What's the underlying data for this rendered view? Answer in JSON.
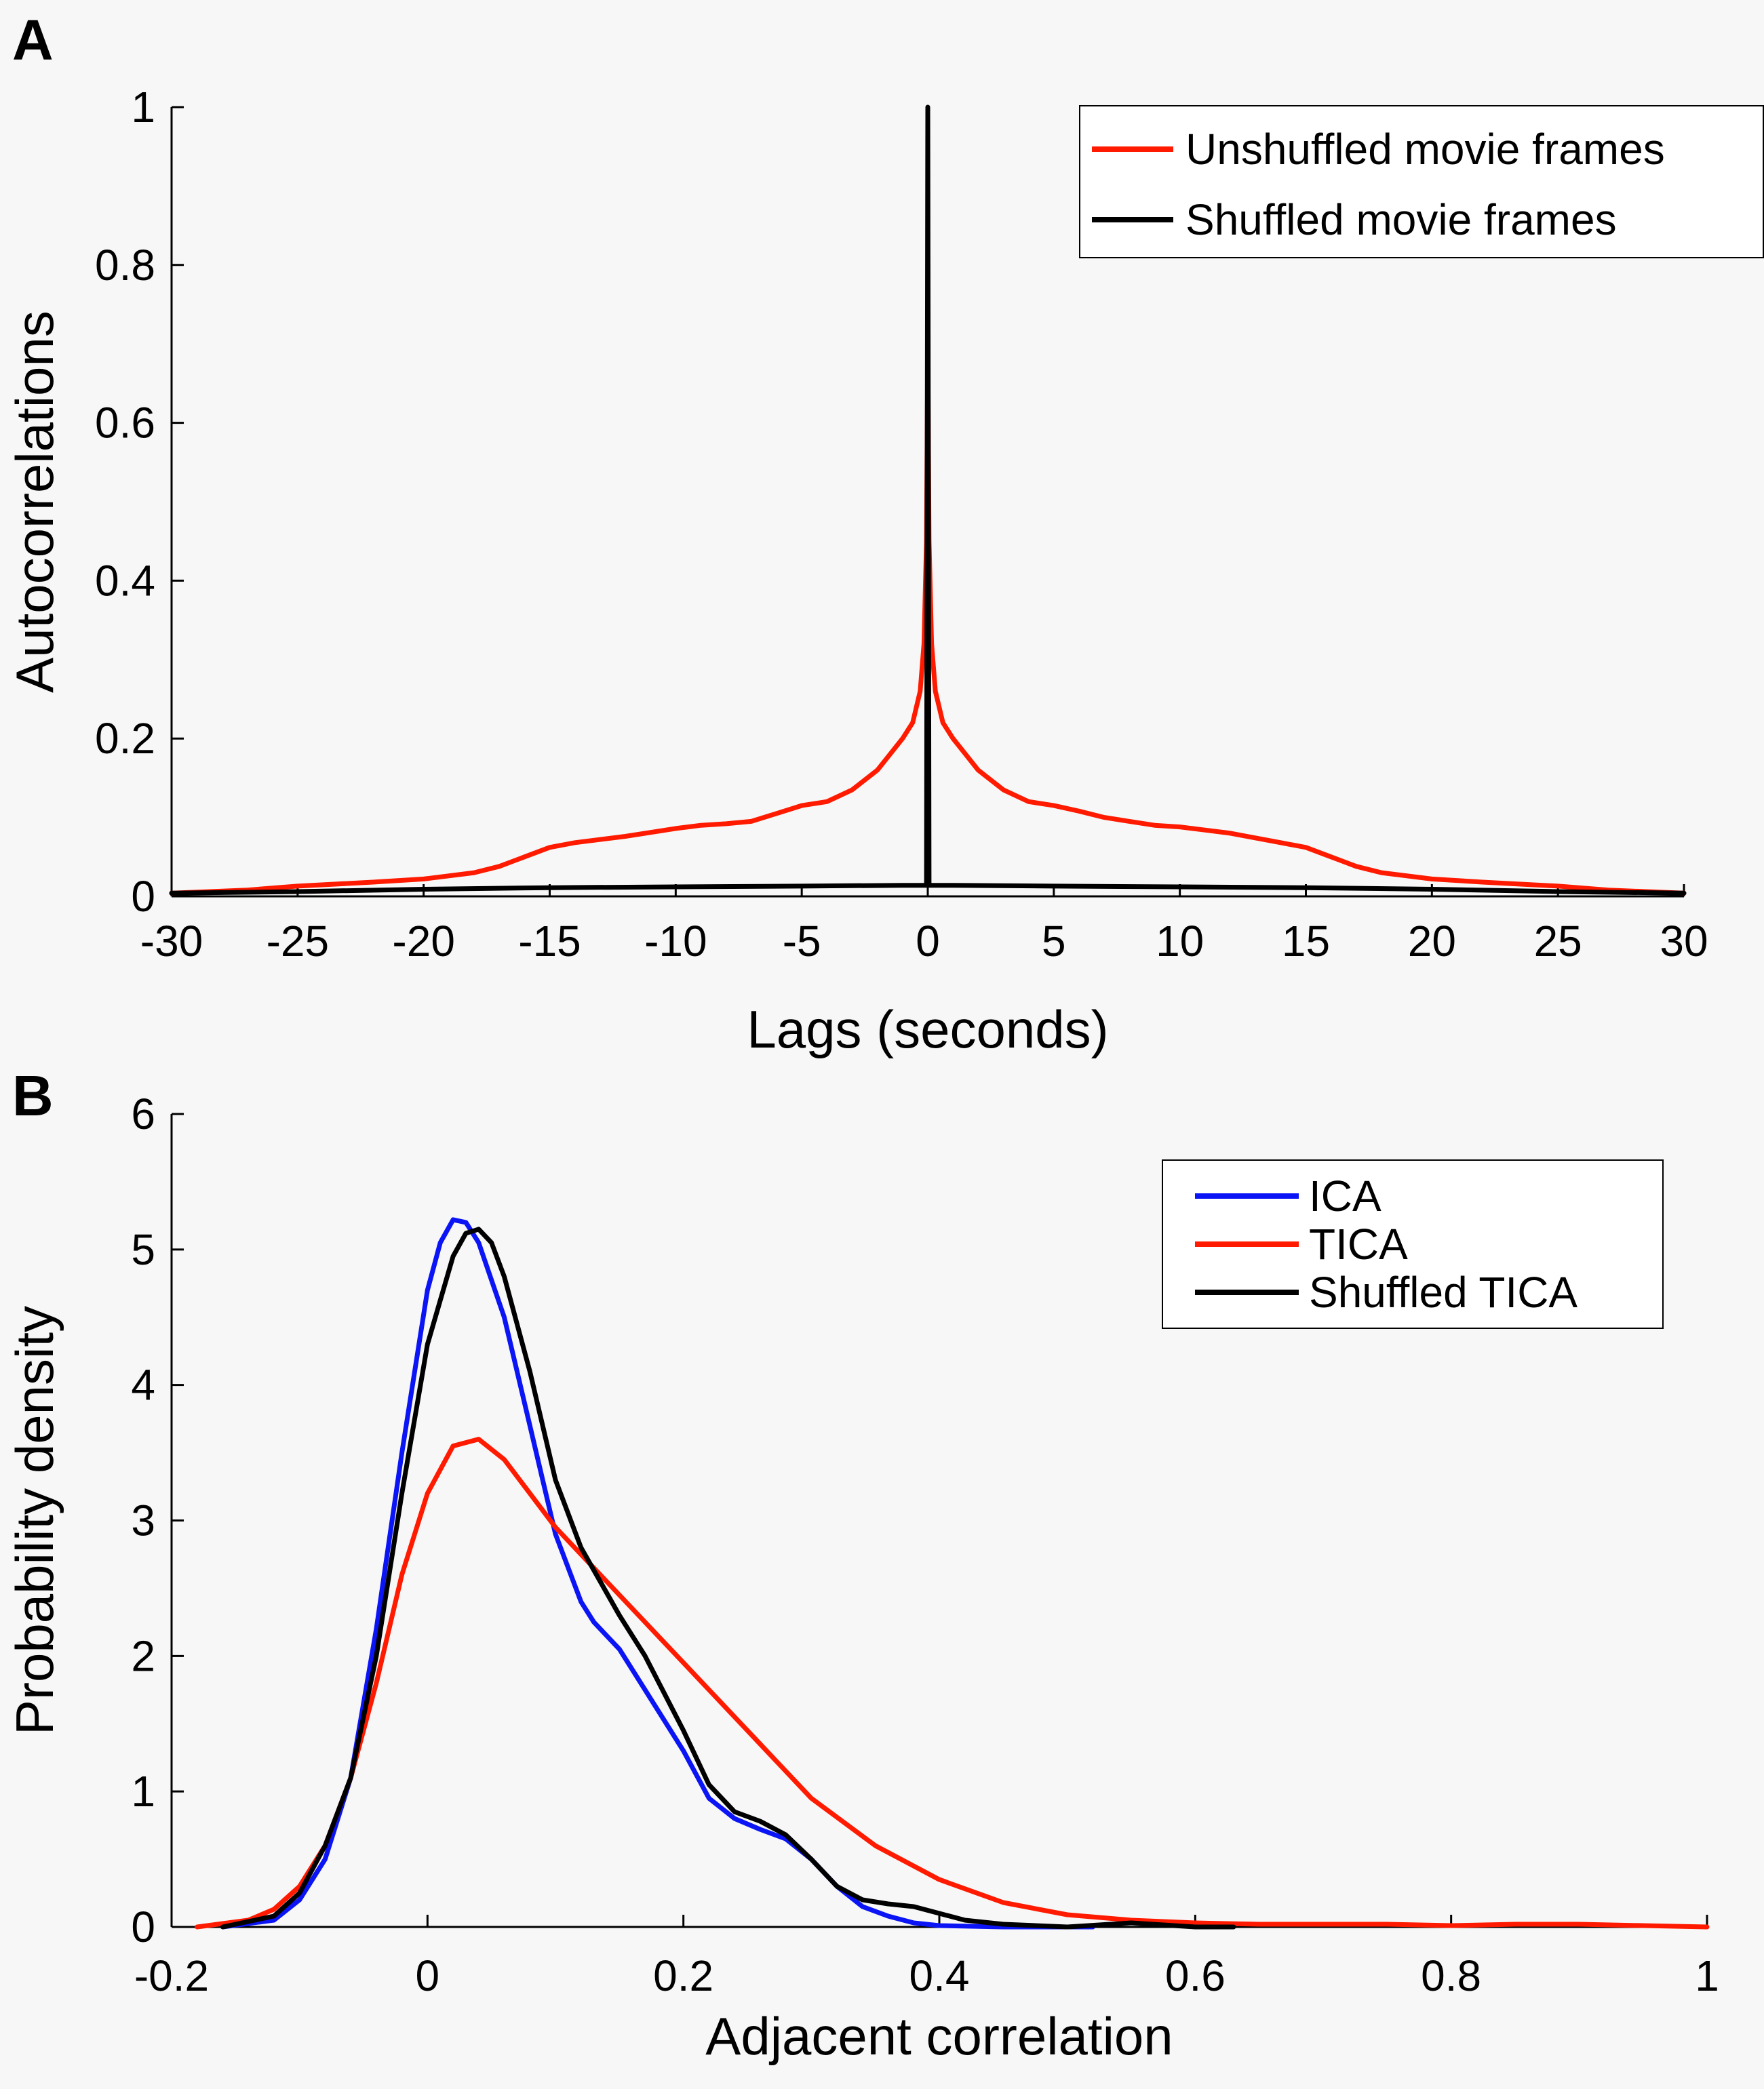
{
  "chart_data": [
    {
      "panel": "A",
      "type": "line",
      "xlabel": "Lags (seconds)",
      "ylabel": "Autocorrelations",
      "xlim": [
        -30,
        30
      ],
      "ylim": [
        0,
        1
      ],
      "xticks": [
        -30,
        -25,
        -20,
        -15,
        -10,
        -5,
        0,
        5,
        10,
        15,
        20,
        25,
        30
      ],
      "yticks": [
        0,
        0.2,
        0.4,
        0.6,
        0.8,
        1
      ],
      "grid": false,
      "legend": {
        "placement": "top-right",
        "entries": [
          "Unshuffled movie frames",
          "Shuffled movie frames"
        ]
      },
      "series": [
        {
          "name": "Unshuffled movie frames",
          "color": "#ff1a00",
          "x": [
            -30,
            -27,
            -25,
            -22,
            -20,
            -18,
            -17,
            -16,
            -15,
            -14,
            -12,
            -10,
            -9,
            -8,
            -7,
            -6,
            -5,
            -4,
            -3,
            -2,
            -1.5,
            -1,
            -0.6,
            -0.3,
            -0.15,
            -0.05,
            0,
            0.05,
            0.15,
            0.3,
            0.6,
            1,
            1.5,
            2,
            3,
            4,
            5,
            6,
            7,
            8,
            9,
            10,
            12,
            14,
            15,
            16,
            17,
            18,
            20,
            22,
            25,
            27,
            30
          ],
          "y": [
            0.004,
            0.008,
            0.013,
            0.018,
            0.022,
            0.03,
            0.038,
            0.05,
            0.062,
            0.068,
            0.076,
            0.086,
            0.09,
            0.092,
            0.095,
            0.105,
            0.115,
            0.12,
            0.135,
            0.16,
            0.18,
            0.2,
            0.22,
            0.26,
            0.32,
            0.45,
            0.7,
            0.45,
            0.32,
            0.26,
            0.22,
            0.2,
            0.18,
            0.16,
            0.135,
            0.12,
            0.115,
            0.108,
            0.1,
            0.095,
            0.09,
            0.088,
            0.08,
            0.068,
            0.062,
            0.05,
            0.038,
            0.03,
            0.022,
            0.018,
            0.013,
            0.008,
            0.004
          ]
        },
        {
          "name": "Shuffled movie frames",
          "color": "#000000",
          "x": [
            -30,
            -25,
            -20,
            -15,
            -10,
            -5,
            -1,
            -0.05,
            0,
            0.05,
            1,
            5,
            10,
            15,
            20,
            25,
            30
          ],
          "y": [
            0.004,
            0.006,
            0.009,
            0.011,
            0.012,
            0.013,
            0.014,
            0.014,
            1.0,
            0.014,
            0.014,
            0.013,
            0.012,
            0.011,
            0.009,
            0.006,
            0.004
          ]
        }
      ]
    },
    {
      "panel": "B",
      "type": "line",
      "xlabel": "Adjacent correlation",
      "ylabel": "Probability density",
      "xlim": [
        -0.2,
        1
      ],
      "ylim": [
        0,
        6
      ],
      "xticks": [
        -0.2,
        0,
        0.2,
        0.4,
        0.6,
        0.8,
        1
      ],
      "yticks": [
        0,
        1,
        2,
        3,
        4,
        5,
        6
      ],
      "grid": false,
      "legend": {
        "placement": "top-right",
        "entries": [
          "ICA",
          "TICA",
          "Shuffled TICA"
        ]
      },
      "series": [
        {
          "name": "ICA",
          "color": "#0a14f5",
          "x": [
            -0.16,
            -0.12,
            -0.1,
            -0.08,
            -0.06,
            -0.04,
            -0.02,
            0,
            0.01,
            0.02,
            0.03,
            0.04,
            0.06,
            0.08,
            0.1,
            0.12,
            0.13,
            0.15,
            0.17,
            0.2,
            0.22,
            0.24,
            0.26,
            0.28,
            0.3,
            0.32,
            0.34,
            0.36,
            0.38,
            0.4,
            0.45,
            0.52
          ],
          "y": [
            0,
            0.05,
            0.2,
            0.5,
            1.1,
            2.2,
            3.5,
            4.7,
            5.05,
            5.22,
            5.2,
            5.05,
            4.5,
            3.7,
            2.9,
            2.4,
            2.25,
            2.05,
            1.75,
            1.3,
            0.95,
            0.8,
            0.72,
            0.65,
            0.5,
            0.3,
            0.15,
            0.08,
            0.03,
            0.01,
            0.0,
            0.0
          ]
        },
        {
          "name": "TICA",
          "color": "#ff1a00",
          "x": [
            -0.18,
            -0.14,
            -0.12,
            -0.1,
            -0.08,
            -0.06,
            -0.04,
            -0.02,
            0,
            0.02,
            0.04,
            0.06,
            0.08,
            0.1,
            0.12,
            0.15,
            0.2,
            0.25,
            0.3,
            0.35,
            0.4,
            0.45,
            0.5,
            0.55,
            0.6,
            0.65,
            0.7,
            0.75,
            0.8,
            0.85,
            0.9,
            0.95,
            1.0
          ],
          "y": [
            0,
            0.05,
            0.13,
            0.3,
            0.6,
            1.1,
            1.8,
            2.6,
            3.2,
            3.55,
            3.6,
            3.45,
            3.2,
            2.95,
            2.75,
            2.45,
            1.95,
            1.45,
            0.95,
            0.6,
            0.35,
            0.18,
            0.09,
            0.05,
            0.03,
            0.02,
            0.02,
            0.02,
            0.01,
            0.02,
            0.02,
            0.01,
            0.0
          ]
        },
        {
          "name": "Shuffled TICA",
          "color": "#000000",
          "x": [
            -0.16,
            -0.12,
            -0.1,
            -0.08,
            -0.06,
            -0.04,
            -0.02,
            0,
            0.02,
            0.03,
            0.04,
            0.05,
            0.06,
            0.08,
            0.1,
            0.12,
            0.15,
            0.17,
            0.2,
            0.22,
            0.24,
            0.26,
            0.28,
            0.3,
            0.32,
            0.34,
            0.36,
            0.38,
            0.4,
            0.42,
            0.45,
            0.5,
            0.55,
            0.6,
            0.63
          ],
          "y": [
            0,
            0.08,
            0.25,
            0.6,
            1.1,
            2.0,
            3.2,
            4.3,
            4.95,
            5.12,
            5.15,
            5.05,
            4.8,
            4.1,
            3.3,
            2.8,
            2.3,
            2.0,
            1.45,
            1.05,
            0.85,
            0.78,
            0.68,
            0.5,
            0.3,
            0.2,
            0.17,
            0.15,
            0.1,
            0.05,
            0.02,
            0.0,
            0.03,
            0.0,
            0.0
          ]
        }
      ]
    }
  ]
}
